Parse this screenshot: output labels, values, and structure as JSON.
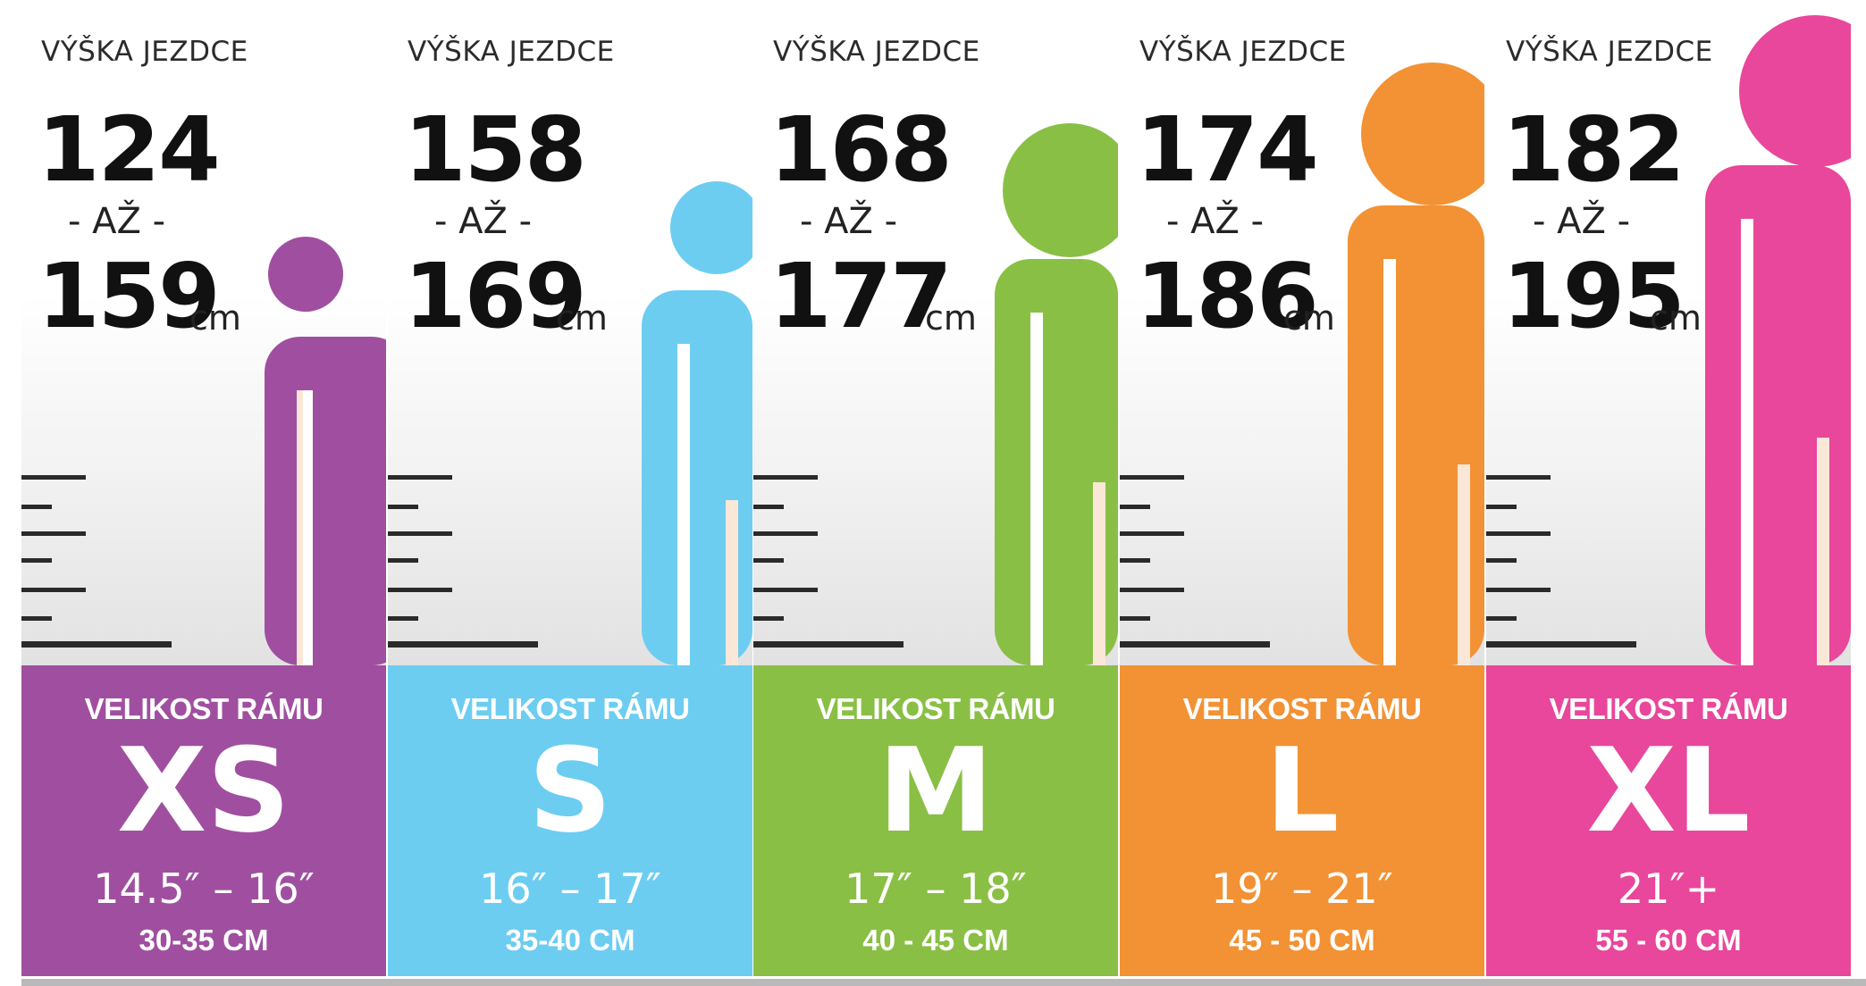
{
  "columns": [
    {
      "label": "VÝŠKA JEZDCE",
      "from": "124",
      "to_word": "- AŽ -",
      "to": "159",
      "unit": "cm",
      "frame_label": "VELIKOST RÁMU",
      "size": "XS",
      "inches": "14.5″ – 16″",
      "cm_range": "30-35 CM",
      "color": "#a04fa0"
    },
    {
      "label": "VÝŠKA JEZDCE",
      "from": "158",
      "to_word": "- AŽ -",
      "to": "169",
      "unit": "cm",
      "frame_label": "VELIKOST RÁMU",
      "size": "S",
      "inches": "16″ – 17″",
      "cm_range": "35-40 CM",
      "color": "#6ccdf1"
    },
    {
      "label": "VÝŠKA JEZDCE",
      "from": "168",
      "to_word": "- AŽ -",
      "to": "177",
      "unit": "cm",
      "frame_label": "VELIKOST RÁMU",
      "size": "M",
      "inches": "17″ – 18″",
      "cm_range": "40 - 45 CM",
      "color": "#8abf45"
    },
    {
      "label": "VÝŠKA JEZDCE",
      "from": "174",
      "to_word": "- AŽ -",
      "to": "186",
      "unit": "cm",
      "frame_label": "VELIKOST RÁMU",
      "size": "L",
      "inches": "19″ – 21″",
      "cm_range": "45 - 50 CM",
      "color": "#f29234"
    },
    {
      "label": "VÝŠKA JEZDCE",
      "from": "182",
      "to_word": "- AŽ -",
      "to": "195",
      "unit": "cm",
      "frame_label": "VELIKOST RÁMU",
      "size": "XL",
      "inches": "21″+",
      "cm_range": "55 - 60 CM",
      "color": "#e8479b"
    }
  ]
}
